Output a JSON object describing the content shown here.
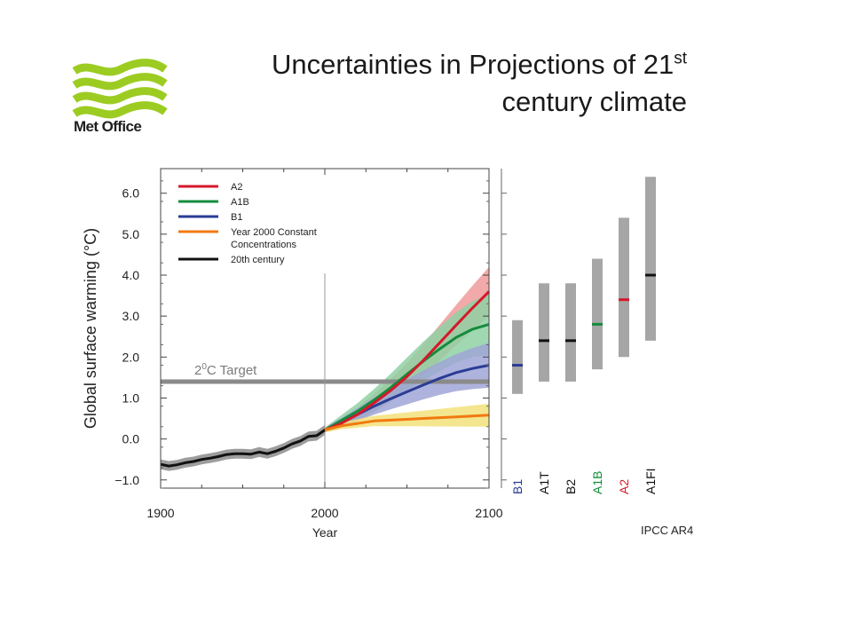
{
  "header": {
    "title_main": "Uncertainties in Projections of 21",
    "title_sup": "st",
    "title_line2": "century climate",
    "logo_text": "Met Office"
  },
  "colors": {
    "A2": "#d7182a",
    "A1B": "#148c3c",
    "B1": "#2b3c96",
    "constant": "#f07a10",
    "twentieth": "#111111",
    "target": "#8a8a8a",
    "bar": "#a6a6a6",
    "logo": "#9ccc22"
  },
  "chart_data": {
    "type": "line",
    "xlabel": "Year",
    "ylabel": "Global surface warming (°C)",
    "xlim": [
      1900,
      2100
    ],
    "ylim": [
      -1.2,
      6.6
    ],
    "x_ticks": [
      "1900",
      "2000",
      "2100"
    ],
    "y_ticks": [
      "6.0",
      "5.0",
      "4.0",
      "3.0",
      "2.0",
      "1.0",
      "0.0",
      "−1.0"
    ],
    "grid": false,
    "legend_position": "top-left",
    "target": {
      "label_main": "2",
      "label_sup": "0",
      "label_rest": "C Target",
      "value": 1.4
    },
    "vertical_line_x": 2000,
    "series": [
      {
        "key": "twentieth",
        "name": "20th century",
        "points": [
          [
            1900,
            -0.62
          ],
          [
            1905,
            -0.66
          ],
          [
            1910,
            -0.63
          ],
          [
            1915,
            -0.58
          ],
          [
            1920,
            -0.55
          ],
          [
            1925,
            -0.5
          ],
          [
            1930,
            -0.47
          ],
          [
            1935,
            -0.43
          ],
          [
            1940,
            -0.38
          ],
          [
            1945,
            -0.36
          ],
          [
            1950,
            -0.36
          ],
          [
            1955,
            -0.37
          ],
          [
            1960,
            -0.32
          ],
          [
            1965,
            -0.36
          ],
          [
            1970,
            -0.3
          ],
          [
            1975,
            -0.22
          ],
          [
            1980,
            -0.12
          ],
          [
            1985,
            -0.05
          ],
          [
            1990,
            0.06
          ],
          [
            1995,
            0.08
          ],
          [
            2000,
            0.22
          ]
        ],
        "band": 0.12
      },
      {
        "key": "constant",
        "name": "Year 2000 Constant Concentrations",
        "points": [
          [
            2000,
            0.22
          ],
          [
            2010,
            0.32
          ],
          [
            2020,
            0.38
          ],
          [
            2030,
            0.44
          ],
          [
            2040,
            0.46
          ],
          [
            2050,
            0.48
          ],
          [
            2060,
            0.5
          ],
          [
            2070,
            0.52
          ],
          [
            2080,
            0.54
          ],
          [
            2090,
            0.56
          ],
          [
            2100,
            0.58
          ]
        ],
        "band": [
          [
            2000,
            0.06
          ],
          [
            2100,
            0.28
          ]
        ]
      },
      {
        "key": "B1",
        "name": "B1",
        "points": [
          [
            2000,
            0.22
          ],
          [
            2010,
            0.4
          ],
          [
            2020,
            0.6
          ],
          [
            2030,
            0.8
          ],
          [
            2040,
            0.98
          ],
          [
            2050,
            1.15
          ],
          [
            2060,
            1.32
          ],
          [
            2070,
            1.48
          ],
          [
            2080,
            1.62
          ],
          [
            2090,
            1.72
          ],
          [
            2100,
            1.8
          ]
        ],
        "band": [
          [
            2000,
            0.06
          ],
          [
            2100,
            0.55
          ]
        ]
      },
      {
        "key": "A1B",
        "name": "A1B",
        "points": [
          [
            2000,
            0.22
          ],
          [
            2010,
            0.45
          ],
          [
            2020,
            0.68
          ],
          [
            2030,
            0.95
          ],
          [
            2040,
            1.25
          ],
          [
            2050,
            1.58
          ],
          [
            2060,
            1.9
          ],
          [
            2070,
            2.2
          ],
          [
            2080,
            2.48
          ],
          [
            2090,
            2.68
          ],
          [
            2100,
            2.8
          ]
        ],
        "band": [
          [
            2000,
            0.06
          ],
          [
            2100,
            0.75
          ]
        ]
      },
      {
        "key": "A2",
        "name": "A2",
        "points": [
          [
            2000,
            0.22
          ],
          [
            2010,
            0.38
          ],
          [
            2020,
            0.6
          ],
          [
            2030,
            0.88
          ],
          [
            2040,
            1.18
          ],
          [
            2050,
            1.52
          ],
          [
            2060,
            1.92
          ],
          [
            2070,
            2.35
          ],
          [
            2080,
            2.78
          ],
          [
            2090,
            3.2
          ],
          [
            2100,
            3.6
          ]
        ],
        "band": [
          [
            2000,
            0.06
          ],
          [
            2100,
            0.6
          ]
        ]
      }
    ],
    "legend": [
      {
        "key": "A2",
        "label": "A2"
      },
      {
        "key": "A1B",
        "label": "A1B"
      },
      {
        "key": "B1",
        "label": "B1"
      },
      {
        "key": "constant",
        "label": "Year 2000 Constant",
        "label2": "Concentrations"
      },
      {
        "key": "twentieth",
        "label": "20th century"
      }
    ],
    "ranges": [
      {
        "scenario": "B1",
        "low": 1.1,
        "high": 2.9,
        "best": 1.8,
        "color_key": "B1"
      },
      {
        "scenario": "A1T",
        "low": 1.4,
        "high": 3.8,
        "best": 2.4,
        "color_key": "twentieth"
      },
      {
        "scenario": "B2",
        "low": 1.4,
        "high": 3.8,
        "best": 2.4,
        "color_key": "twentieth"
      },
      {
        "scenario": "A1B",
        "low": 1.7,
        "high": 4.4,
        "best": 2.8,
        "color_key": "A1B"
      },
      {
        "scenario": "A2",
        "low": 2.0,
        "high": 5.4,
        "best": 3.4,
        "color_key": "A2"
      },
      {
        "scenario": "A1FI",
        "low": 2.4,
        "high": 6.4,
        "best": 4.0,
        "color_key": "twentieth"
      }
    ],
    "source": "IPCC AR4"
  }
}
